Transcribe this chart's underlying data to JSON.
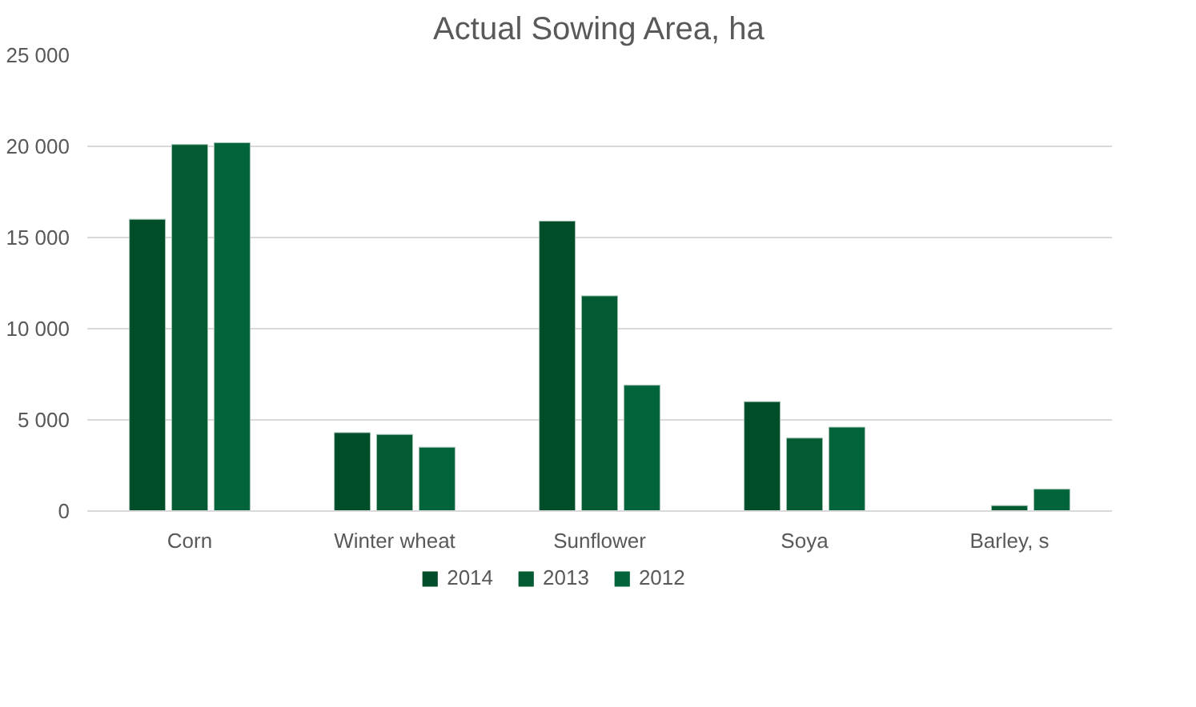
{
  "chart_data": {
    "type": "bar",
    "title": "Actual Sowing Area, ha",
    "categories": [
      "Corn",
      "Winter wheat",
      "Sunflower",
      "Soya",
      "Barley, s"
    ],
    "series": [
      {
        "name": "2014",
        "color": "#004d2a",
        "values": [
          16000,
          4300,
          15900,
          6000,
          null
        ]
      },
      {
        "name": "2013",
        "color": "#035a33",
        "values": [
          20100,
          4200,
          11800,
          4000,
          300
        ]
      },
      {
        "name": "2012",
        "color": "#02643a",
        "values": [
          20200,
          3500,
          6900,
          4600,
          1200
        ]
      }
    ],
    "ylim": [
      0,
      25000
    ],
    "yticks": [
      {
        "value": 0,
        "label": "0"
      },
      {
        "value": 5000,
        "label": "5 000"
      },
      {
        "value": 10000,
        "label": "10 000"
      },
      {
        "value": 15000,
        "label": "15 000"
      },
      {
        "value": 20000,
        "label": "20 000"
      },
      {
        "value": 25000,
        "label": "25 000"
      }
    ],
    "grid": "y",
    "legend": "bottom"
  }
}
